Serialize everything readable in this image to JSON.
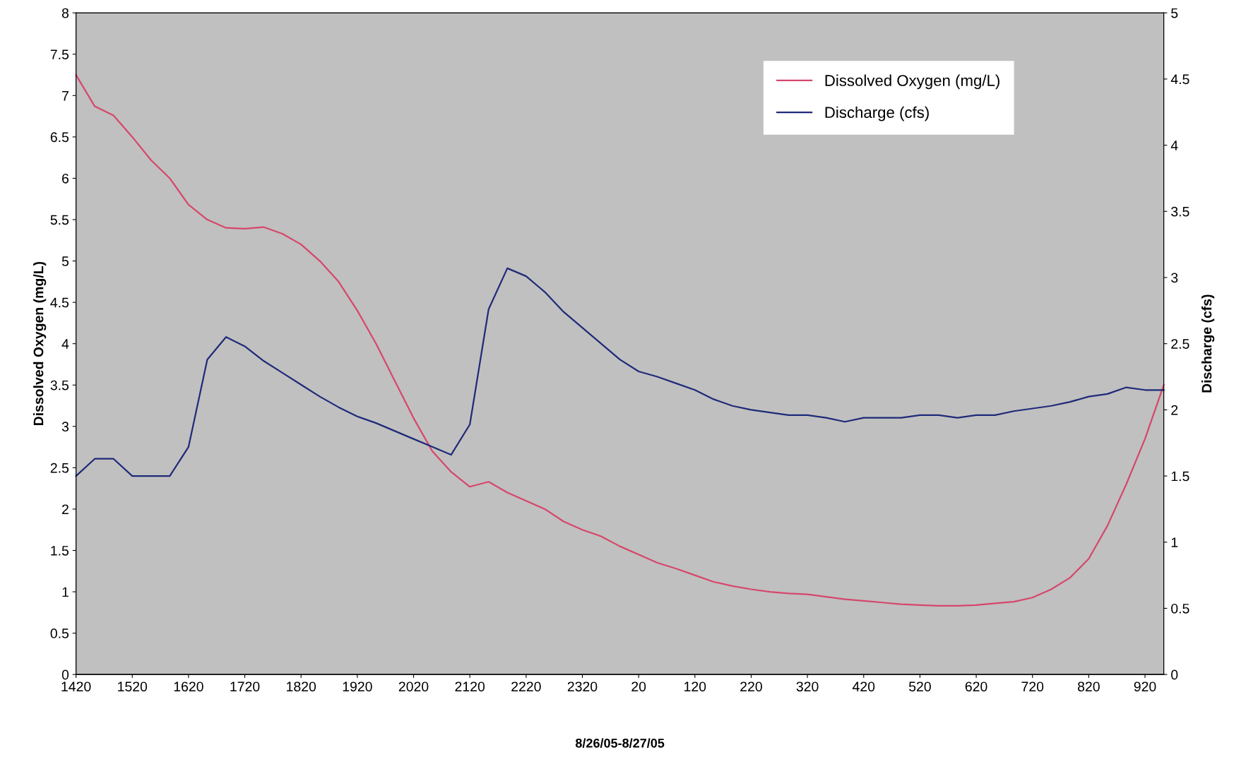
{
  "chart_data": {
    "type": "line",
    "xlabel": "8/26/05-8/27/05",
    "ylabel": "Dissolved Oxygen (mg/L)",
    "y2label": "Discharge (cfs)",
    "categories": [
      "1420",
      null,
      null,
      "1520",
      null,
      null,
      "1620",
      null,
      null,
      "1720",
      null,
      null,
      "1820",
      null,
      null,
      "1920",
      null,
      null,
      "2020",
      null,
      null,
      "2120",
      null,
      null,
      "2220",
      null,
      null,
      "2320",
      null,
      null,
      "20",
      null,
      null,
      "120",
      null,
      null,
      "220",
      null,
      null,
      "320",
      null,
      null,
      "420",
      null,
      null,
      "520",
      null,
      null,
      "620",
      null,
      null,
      "720",
      null,
      null,
      "820",
      null,
      null,
      "920",
      null
    ],
    "series": [
      {
        "name": "Dissolved Oxygen (mg/L)",
        "color": "#d6476b",
        "values": [
          7.25,
          6.87,
          6.76,
          6.5,
          6.22,
          6.0,
          5.68,
          5.5,
          5.4,
          5.39,
          5.41,
          5.33,
          5.2,
          5.0,
          4.75,
          4.4,
          4.0,
          3.55,
          3.1,
          2.7,
          2.45,
          2.27,
          2.33,
          2.2,
          2.1,
          2.0,
          1.85,
          1.75,
          1.67,
          1.55,
          1.45,
          1.35,
          1.28,
          1.2,
          1.12,
          1.07,
          1.03,
          1.0,
          0.98,
          0.97,
          0.94,
          0.91,
          0.89,
          0.87,
          0.85,
          0.84,
          0.83,
          0.83,
          0.84,
          0.86,
          0.88,
          0.93,
          1.03,
          1.17,
          1.4,
          1.8,
          2.3,
          2.85,
          3.5
        ]
      },
      {
        "name": "Discharge (cfs)",
        "color": "#1f2a7a",
        "axis": "y2",
        "values": [
          1.5,
          1.63,
          1.63,
          1.5,
          1.5,
          1.5,
          1.72,
          2.38,
          2.55,
          2.48,
          2.37,
          2.28,
          2.19,
          2.1,
          2.02,
          1.95,
          1.9,
          1.84,
          1.78,
          1.72,
          1.66,
          1.89,
          2.76,
          3.07,
          3.01,
          2.89,
          2.74,
          2.62,
          2.5,
          2.38,
          2.29,
          2.25,
          2.2,
          2.15,
          2.08,
          2.03,
          2.0,
          1.98,
          1.96,
          1.96,
          1.94,
          1.91,
          1.94,
          1.94,
          1.94,
          1.96,
          1.96,
          1.94,
          1.96,
          1.96,
          1.99,
          2.01,
          2.03,
          2.06,
          2.1,
          2.12,
          2.17,
          2.15,
          2.15
        ]
      }
    ],
    "ylim": [
      0,
      8
    ],
    "yticks": [
      0,
      0.5,
      1,
      1.5,
      2,
      2.5,
      3,
      3.5,
      4,
      4.5,
      5,
      5.5,
      6,
      6.5,
      7,
      7.5,
      8
    ],
    "y2lim": [
      0,
      5
    ],
    "y2ticks": [
      0,
      0.5,
      1,
      1.5,
      2,
      2.5,
      3,
      3.5,
      4,
      4.5,
      5
    ],
    "legend": "top right",
    "grid": false,
    "marker": "none",
    "line_style": "solid"
  }
}
